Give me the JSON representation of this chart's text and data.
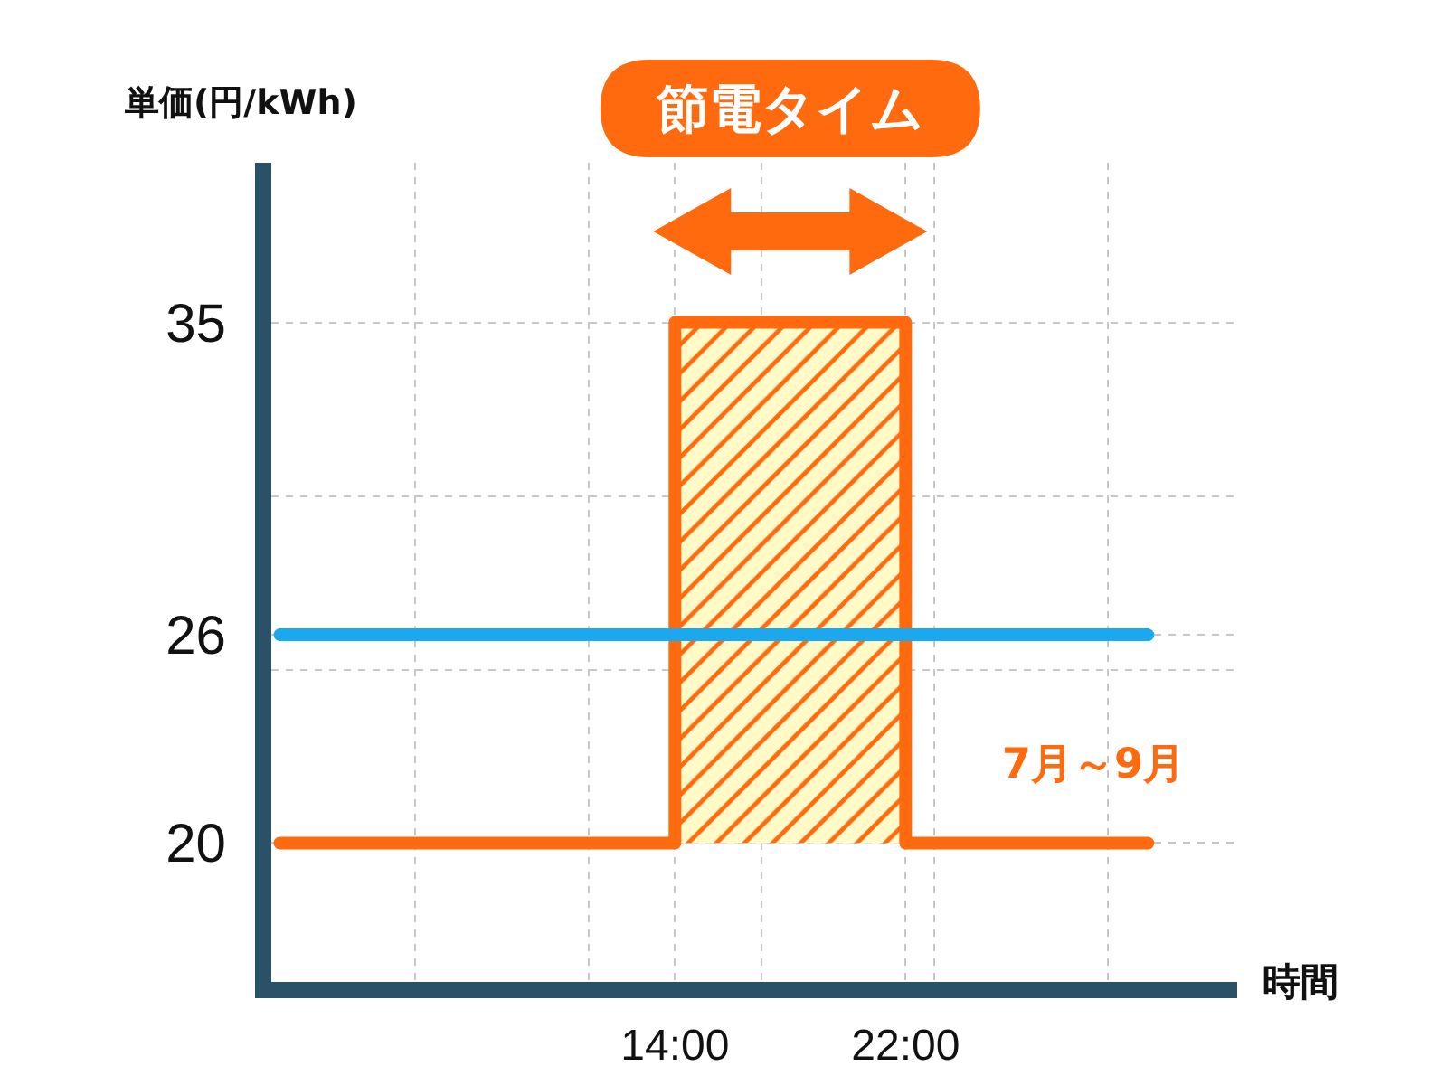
{
  "chart_data": {
    "type": "step",
    "xlabel": "時間",
    "ylabel": "単価(円/kWh)",
    "xlim": [
      0,
      33.5
    ],
    "xticks": [
      {
        "value": 5,
        "label": null
      },
      {
        "value": 11,
        "label": null
      },
      {
        "value": 14,
        "label": "14:00"
      },
      {
        "value": 17,
        "label": null
      },
      {
        "value": 22,
        "label": "22:00"
      },
      {
        "value": 23,
        "label": null
      },
      {
        "value": 29,
        "label": null
      }
    ],
    "ylim": [
      16,
      39.6
    ],
    "yticks": [
      20,
      {
        "value": 25,
        "label": null
      },
      26,
      {
        "value": 30,
        "label": null
      },
      35
    ],
    "grid": true,
    "legend": false,
    "series": [
      {
        "name": "7月～9月",
        "color": "#ff6a0f",
        "x": [
          0.3,
          14,
          22,
          30.4
        ],
        "values": [
          20,
          35,
          20,
          20
        ],
        "lower": [
          20,
          20,
          20,
          20
        ],
        "upper": [
          20,
          35,
          20,
          20
        ]
      },
      {
        "type": "line",
        "color": "#1aa9ee",
        "x": [
          0.3,
          30.4
        ],
        "values": [
          26,
          26
        ]
      }
    ],
    "annotations": [
      "節電タイム"
    ]
  }
}
